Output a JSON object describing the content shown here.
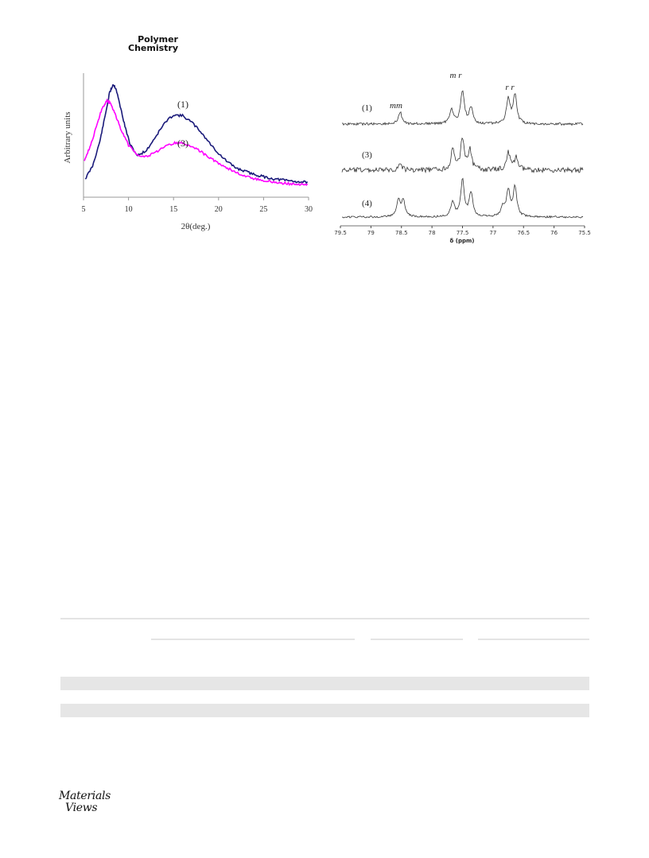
{
  "journal": {
    "line1": "Polymer",
    "line2": "Chemistry"
  },
  "publisher_logo": {
    "line1": "Materials",
    "line2": "Views"
  },
  "figure_left": {
    "chart_data": {
      "type": "line",
      "xlabel": "2θ(deg.)",
      "ylabel": "Arbitrary units",
      "xlim": [
        5,
        30
      ],
      "x_ticks": [
        "5",
        "10",
        "15",
        "20",
        "25",
        "30"
      ],
      "grid": false,
      "series": [
        {
          "name": "(1)",
          "color": "#1a1a7a",
          "x": [
            5.2,
            6,
            6.8,
            7.4,
            7.9,
            8.3,
            8.6,
            9,
            9.6,
            10.2,
            11,
            12,
            13,
            14,
            15,
            16,
            17,
            18,
            19,
            20,
            21,
            22,
            23,
            24,
            25,
            26,
            27,
            28,
            29,
            30
          ],
          "y": [
            0.1,
            0.22,
            0.45,
            0.7,
            0.92,
            1.0,
            0.96,
            0.82,
            0.6,
            0.42,
            0.32,
            0.37,
            0.5,
            0.63,
            0.71,
            0.7,
            0.64,
            0.55,
            0.44,
            0.34,
            0.26,
            0.2,
            0.17,
            0.14,
            0.12,
            0.1,
            0.09,
            0.08,
            0.07,
            0.07
          ]
        },
        {
          "name": "(3)",
          "color": "#ff00ff",
          "x": [
            5.1,
            5.8,
            6.5,
            7.1,
            7.6,
            8.0,
            8.5,
            9.2,
            10,
            11,
            12,
            13,
            14,
            15,
            16,
            17,
            18,
            19,
            20,
            21,
            22,
            23,
            24,
            25,
            26,
            27,
            28,
            29,
            30
          ],
          "y": [
            0.28,
            0.42,
            0.62,
            0.78,
            0.84,
            0.82,
            0.72,
            0.56,
            0.42,
            0.33,
            0.31,
            0.35,
            0.4,
            0.44,
            0.44,
            0.41,
            0.36,
            0.3,
            0.25,
            0.2,
            0.16,
            0.12,
            0.1,
            0.08,
            0.07,
            0.06,
            0.05,
            0.05,
            0.04
          ]
        }
      ]
    }
  },
  "figure_right": {
    "chart_data": {
      "type": "line",
      "xlabel": "δ (ppm)",
      "xlim": [
        79.5,
        75.5
      ],
      "x_ticks": [
        "79.5",
        "79",
        "78.5",
        "78",
        "77.5",
        "77",
        "76.5",
        "76",
        "75.5"
      ],
      "annotations": [
        "mm",
        "m r",
        "r r"
      ],
      "grid": false,
      "series": [
        {
          "name": "(1)",
          "color": "#333333",
          "peaks": [
            [
              78.52,
              0.35
            ],
            [
              77.68,
              0.45
            ],
            [
              77.5,
              1.0
            ],
            [
              77.36,
              0.45
            ],
            [
              76.75,
              0.75
            ],
            [
              76.64,
              0.85
            ]
          ]
        },
        {
          "name": "(3)",
          "color": "#333333",
          "peaks": [
            [
              78.52,
              0.18
            ],
            [
              77.66,
              0.55
            ],
            [
              77.5,
              0.9
            ],
            [
              77.38,
              0.55
            ],
            [
              76.75,
              0.5
            ],
            [
              76.62,
              0.35
            ]
          ]
        },
        {
          "name": "(4)",
          "color": "#333333",
          "peaks": [
            [
              78.55,
              0.45
            ],
            [
              78.47,
              0.45
            ],
            [
              77.66,
              0.4
            ],
            [
              77.5,
              1.0
            ],
            [
              77.36,
              0.65
            ],
            [
              76.84,
              0.25
            ],
            [
              76.75,
              0.7
            ],
            [
              76.64,
              0.8
            ]
          ]
        }
      ]
    }
  }
}
